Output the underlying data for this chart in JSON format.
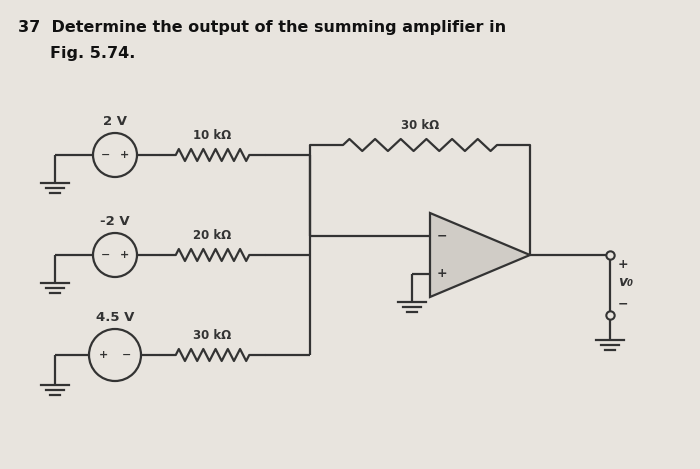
{
  "title_line1": "37  Determine the output of the summing amplifier in",
  "title_line2": "Fig. 5.74.",
  "bg_color": "#e8e4de",
  "line_color": "#333333",
  "text_color": "#111111",
  "v1_label": "2 V",
  "v2_label": "-2 V",
  "v3_label": "4.5 V",
  "r1_label": "10 kΩ",
  "r2_label": "20 kΩ",
  "r3_label": "30 kΩ",
  "rf_label": "30 kΩ",
  "v_out_label": "v₀",
  "fig_width": 7.0,
  "fig_height": 4.69,
  "dpi": 100
}
